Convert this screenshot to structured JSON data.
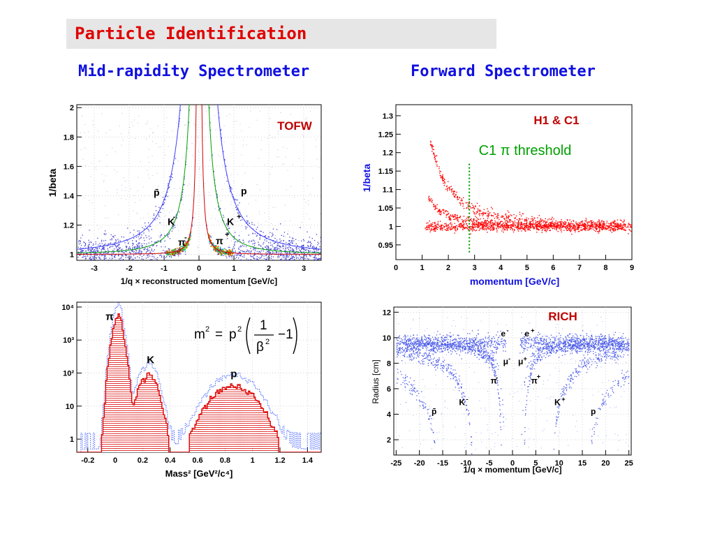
{
  "slide": {
    "title": "Particle Identification",
    "mid_title": "Mid-rapidity Spectrometer",
    "fwd_title": "Forward Spectrometer"
  },
  "colors": {
    "title": "#e00000",
    "section": "#1010e0",
    "tof_band": "#4040d0",
    "h1_points": "#ff0000",
    "rich_points": "#4a5ae8"
  },
  "chart_data": [
    {
      "id": "tofw",
      "type": "scatter",
      "label": "TOFW",
      "xlabel": "1/q × reconstructed momentum [GeV/c]",
      "ylabel": "1/beta",
      "xlim": [
        -3.5,
        3.5
      ],
      "ylim": [
        0.96,
        2.02
      ],
      "xticks": [
        -3,
        -2,
        -1,
        0,
        1,
        2,
        3
      ],
      "yticks": [
        1,
        1.2,
        1.4,
        1.6,
        1.8,
        2
      ],
      "series": [
        {
          "name": "π",
          "mass": 0.1396
        },
        {
          "name": "K",
          "mass": 0.4937
        },
        {
          "name": "p",
          "mass": 0.9383
        }
      ],
      "annotations": [
        {
          "text": "p̄",
          "x": -1.3,
          "y": 1.4
        },
        {
          "text": "p",
          "x": 1.2,
          "y": 1.41
        },
        {
          "text": "K",
          "x": -0.9,
          "y": 1.2
        },
        {
          "text": "-",
          "x": -0.75,
          "y": 1.24
        },
        {
          "text": "K",
          "x": 0.8,
          "y": 1.2
        },
        {
          "text": "+",
          "x": 1.08,
          "y": 1.24
        },
        {
          "text": "π",
          "x": -0.6,
          "y": 1.06
        },
        {
          "text": "-",
          "x": -0.42,
          "y": 1.1
        },
        {
          "text": "π",
          "x": 0.48,
          "y": 1.07
        },
        {
          "text": "+",
          "x": 0.74,
          "y": 1.12
        }
      ]
    },
    {
      "id": "h1c1",
      "type": "scatter",
      "label": "H1 & C1",
      "threshold_label": "C1 π threshold",
      "threshold_x": 2.8,
      "xlabel": "momentum [GeV/c]",
      "ylabel": "1/beta",
      "xlim": [
        0,
        9
      ],
      "ylim": [
        0.91,
        1.33
      ],
      "xticks": [
        0,
        1,
        2,
        3,
        4,
        5,
        6,
        7,
        8,
        9
      ],
      "yticks": [
        0.95,
        1,
        1.05,
        1.1,
        1.15,
        1.2,
        1.25,
        1.3
      ]
    },
    {
      "id": "mass",
      "type": "bar",
      "xlabel": "Mass² [GeV²/c⁴]",
      "xlim": [
        -0.28,
        1.5
      ],
      "ylim": [
        0.4,
        14000
      ],
      "yscale": "log",
      "xticks": [
        -0.2,
        0,
        0.2,
        0.4,
        0.6,
        0.8,
        1,
        1.2,
        1.4
      ],
      "yticks": [
        {
          "label": "1",
          "value": 1
        },
        {
          "label": "10",
          "value": 10
        },
        {
          "label": "10²",
          "value": 100
        },
        {
          "label": "10³",
          "value": 1000
        },
        {
          "label": "10⁴",
          "value": 10000
        }
      ],
      "formula": "m² = p²(1/β² − 1)",
      "annotations": [
        {
          "text": "π",
          "x": -0.07,
          "y": 4000
        },
        {
          "text": "K",
          "x": 0.23,
          "y": 200
        },
        {
          "text": "p",
          "x": 0.84,
          "y": 75
        }
      ],
      "peaks": [
        {
          "name": "π",
          "center": 0.02,
          "sigma": 0.028,
          "height": 5000
        },
        {
          "name": "K",
          "center": 0.24,
          "sigma": 0.05,
          "height": 90
        },
        {
          "name": "p",
          "center": 0.86,
          "sigma": 0.12,
          "height": 40
        }
      ]
    },
    {
      "id": "rich",
      "type": "scatter",
      "label": "RICH",
      "xlabel": "1/q × momentum [GeV/c]",
      "ylabel": "Radius [cm]",
      "xlim": [
        -25.5,
        25.5
      ],
      "ylim": [
        0.8,
        12.4
      ],
      "xticks": [
        -25,
        -20,
        -15,
        -10,
        -5,
        0,
        5,
        10,
        15,
        20,
        25
      ],
      "yticks": [
        2,
        4,
        6,
        8,
        10,
        12
      ],
      "annotations": [
        {
          "text": "e",
          "x": -2.5,
          "y": 10.1
        },
        {
          "text": "-",
          "x": -1.3,
          "y": 10.4
        },
        {
          "text": "e",
          "x": 2.6,
          "y": 10.1
        },
        {
          "text": "+",
          "x": 3.9,
          "y": 10.4
        },
        {
          "text": "μ",
          "x": -2.0,
          "y": 7.9
        },
        {
          "text": "-",
          "x": -0.9,
          "y": 8.2
        },
        {
          "text": "μ",
          "x": 1.2,
          "y": 7.9
        },
        {
          "text": "+",
          "x": 2.3,
          "y": 8.2
        },
        {
          "text": "π",
          "x": -4.7,
          "y": 6.4
        },
        {
          "text": "-",
          "x": -3.6,
          "y": 6.7
        },
        {
          "text": "π",
          "x": 4.0,
          "y": 6.4
        },
        {
          "text": "+",
          "x": 5.2,
          "y": 6.8
        },
        {
          "text": "K",
          "x": -11.5,
          "y": 4.7
        },
        {
          "text": "-",
          "x": -10.0,
          "y": 5.0
        },
        {
          "text": "K",
          "x": 9.0,
          "y": 4.7
        },
        {
          "text": "+",
          "x": 10.5,
          "y": 5.0
        },
        {
          "text": "p̄",
          "x": -17.4,
          "y": 4.0
        },
        {
          "text": "p",
          "x": 16.8,
          "y": 4.0
        }
      ]
    }
  ]
}
